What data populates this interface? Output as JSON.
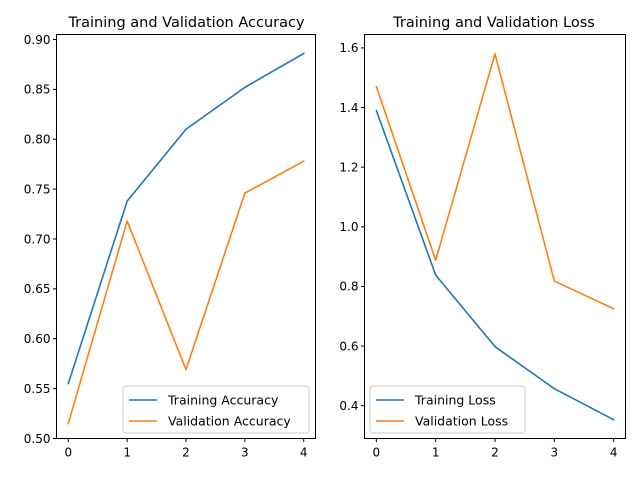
{
  "colors": {
    "blue": "#1f77b4",
    "orange": "#ff7f0e"
  },
  "chart_data": [
    {
      "type": "line",
      "title": "Training and Validation Accuracy",
      "x": [
        0,
        1,
        2,
        3,
        4
      ],
      "xticks": [
        0,
        1,
        2,
        3,
        4
      ],
      "xlim": [
        -0.2,
        4.2
      ],
      "ylim": [
        0.5,
        0.905
      ],
      "yticks": [
        0.5,
        0.55,
        0.6,
        0.65,
        0.7,
        0.75,
        0.8,
        0.85,
        0.9
      ],
      "ytick_labels": [
        "0.50",
        "0.55",
        "0.60",
        "0.65",
        "0.70",
        "0.75",
        "0.80",
        "0.85",
        "0.90"
      ],
      "legend_loc": "lower right",
      "series": [
        {
          "name": "Training Accuracy",
          "color": "#1f77b4",
          "values": [
            0.555,
            0.738,
            0.81,
            0.852,
            0.886
          ]
        },
        {
          "name": "Validation Accuracy",
          "color": "#ff7f0e",
          "values": [
            0.515,
            0.718,
            0.569,
            0.746,
            0.778
          ]
        }
      ]
    },
    {
      "type": "line",
      "title": "Training and Validation Loss",
      "x": [
        0,
        1,
        2,
        3,
        4
      ],
      "xticks": [
        0,
        1,
        2,
        3,
        4
      ],
      "xlim": [
        -0.2,
        4.2
      ],
      "ylim": [
        0.29,
        1.645
      ],
      "yticks": [
        0.4,
        0.6,
        0.8,
        1.0,
        1.2,
        1.4,
        1.6
      ],
      "ytick_labels": [
        "0.4",
        "0.6",
        "0.8",
        "1.0",
        "1.2",
        "1.4",
        "1.6"
      ],
      "legend_loc": "lower left",
      "series": [
        {
          "name": "Training Loss",
          "color": "#1f77b4",
          "values": [
            1.39,
            0.838,
            0.598,
            0.457,
            0.353
          ]
        },
        {
          "name": "Validation Loss",
          "color": "#ff7f0e",
          "values": [
            1.47,
            0.888,
            1.58,
            0.818,
            0.725
          ]
        }
      ]
    }
  ]
}
